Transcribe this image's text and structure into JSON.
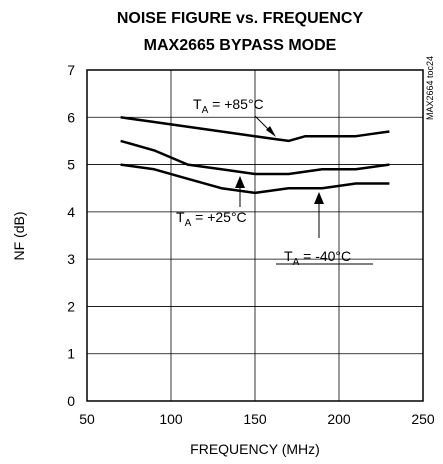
{
  "chart_data": {
    "type": "line",
    "title": "NOISE FIGURE vs. FREQUENCY",
    "subtitle": "MAX2665 BYPASS MODE",
    "xlabel": "FREQUENCY (MHz)",
    "ylabel": "NF (dB)",
    "xlim": [
      50,
      250
    ],
    "ylim": [
      0,
      7
    ],
    "x_ticks": [
      "50",
      "100",
      "150",
      "200",
      "250"
    ],
    "y_ticks": [
      "0",
      "1",
      "2",
      "3",
      "4",
      "5",
      "6",
      "7"
    ],
    "grid": true,
    "side_label": "MAX2664 toc24",
    "series": [
      {
        "name": "TA = +85°C",
        "x": [
          70,
          90,
          110,
          130,
          150,
          160,
          170,
          180,
          190,
          210,
          220,
          230
        ],
        "y": [
          6.0,
          5.9,
          5.8,
          5.7,
          5.6,
          5.55,
          5.5,
          5.6,
          5.6,
          5.6,
          5.65,
          5.7
        ]
      },
      {
        "name": "TA = +25°C",
        "x": [
          70,
          90,
          110,
          130,
          150,
          170,
          190,
          210,
          230
        ],
        "y": [
          5.5,
          5.3,
          5.0,
          4.9,
          4.8,
          4.8,
          4.9,
          4.9,
          5.0
        ]
      },
      {
        "name": "TA = -40°C",
        "x": [
          70,
          90,
          110,
          130,
          150,
          170,
          190,
          210,
          230
        ],
        "y": [
          5.0,
          4.9,
          4.7,
          4.5,
          4.4,
          4.5,
          4.5,
          4.6,
          4.6
        ]
      }
    ],
    "annotations": [
      {
        "main": "T",
        "sub": "A",
        "rest": " = +85°C"
      },
      {
        "main": "T",
        "sub": "A",
        "rest": " = +25°C"
      },
      {
        "main": "T",
        "sub": "A",
        "rest": " = -40°C"
      }
    ]
  }
}
